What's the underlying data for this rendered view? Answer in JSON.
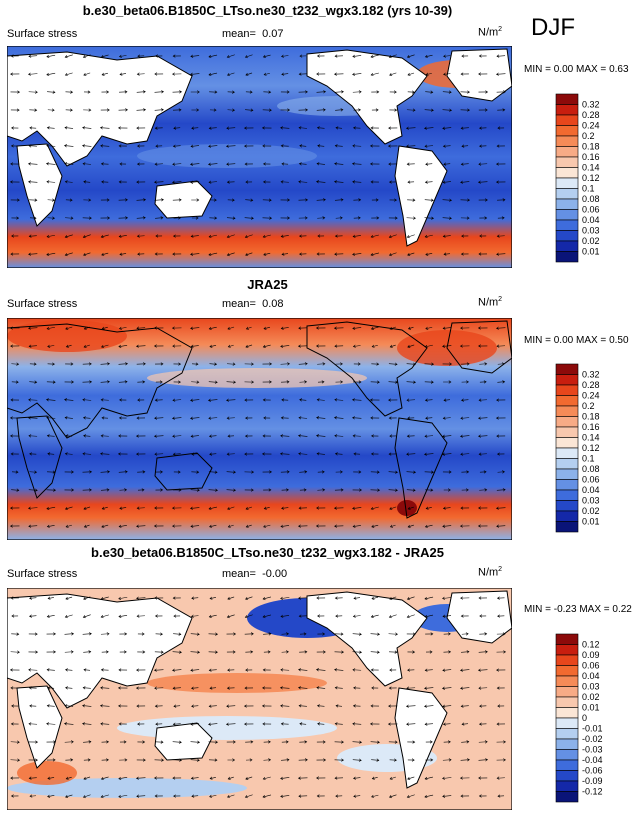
{
  "season": "DJF",
  "panels": [
    {
      "title": "b.e30_beta06.B1850C_LTso.ne30_t232_wgx3.182 (yrs 10-39)",
      "left_label": "Surface stress",
      "mean_label": "mean=",
      "mean_value": "0.07",
      "units": "N/m",
      "units_sup": "2",
      "min_label": "MIN =",
      "min_value": "0.00",
      "max_label": "MAX =",
      "max_value": "0.63"
    },
    {
      "title": "JRA25",
      "left_label": "Surface stress",
      "mean_label": "mean=",
      "mean_value": "0.08",
      "units": "N/m",
      "units_sup": "2",
      "min_label": "MIN =",
      "min_value": "0.00",
      "max_label": "MAX =",
      "max_value": "0.50"
    },
    {
      "title": "b.e30_beta06.B1850C_LTso.ne30_t232_wgx3.182 - JRA25",
      "left_label": "Surface stress",
      "mean_label": "mean=",
      "mean_value": "-0.00",
      "units": "N/m",
      "units_sup": "2",
      "min_label": "MIN =",
      "min_value": "-0.23",
      "max_label": "MAX =",
      "max_value": "0.22"
    }
  ],
  "colorbars": {
    "magnitude": {
      "labels": [
        "0.32",
        "0.28",
        "0.24",
        "0.2",
        "0.18",
        "0.16",
        "0.14",
        "0.12",
        "0.1",
        "0.08",
        "0.06",
        "0.04",
        "0.03",
        "0.02",
        "0.01"
      ],
      "colors": [
        "#8c0a0a",
        "#c81e0f",
        "#e8461c",
        "#f26a30",
        "#f58b58",
        "#f7ab86",
        "#f8c8ae",
        "#fbe6d6",
        "#dce9f7",
        "#b4cff0",
        "#8cb2ea",
        "#6490e4",
        "#3e6cdc",
        "#2448c8",
        "#1428a8",
        "#0a1478"
      ]
    },
    "difference": {
      "labels": [
        "0.12",
        "0.09",
        "0.06",
        "0.04",
        "0.03",
        "0.02",
        "0.01",
        "0",
        "-0.01",
        "-0.02",
        "-0.03",
        "-0.04",
        "-0.06",
        "-0.09",
        "-0.12"
      ],
      "colors": [
        "#8c0a0a",
        "#c81e0f",
        "#e8461c",
        "#f26a30",
        "#f58b58",
        "#f7ab86",
        "#f8c8ae",
        "#fbe6d6",
        "#dce9f7",
        "#b4cff0",
        "#8cb2ea",
        "#6490e4",
        "#3e6cdc",
        "#2448c8",
        "#1428a8",
        "#0a1478"
      ]
    }
  },
  "chart_data": [
    {
      "type": "heatmap",
      "title": "b.e30_beta06.B1850C_LTso.ne30_t232_wgx3.182 (yrs 10-39)",
      "variable": "Surface stress",
      "units": "N/m2",
      "season": "DJF",
      "mean": 0.07,
      "min": 0.0,
      "max": 0.63,
      "contour_levels": [
        0.01,
        0.02,
        0.03,
        0.04,
        0.06,
        0.08,
        0.1,
        0.12,
        0.14,
        0.16,
        0.18,
        0.2,
        0.24,
        0.28,
        0.32
      ],
      "overlay": "wind stress vectors",
      "map": "global, Pacific-centered"
    },
    {
      "type": "heatmap",
      "title": "JRA25",
      "variable": "Surface stress",
      "units": "N/m2",
      "season": "DJF",
      "mean": 0.08,
      "min": 0.0,
      "max": 0.5,
      "contour_levels": [
        0.01,
        0.02,
        0.03,
        0.04,
        0.06,
        0.08,
        0.1,
        0.12,
        0.14,
        0.16,
        0.18,
        0.2,
        0.24,
        0.28,
        0.32
      ],
      "overlay": "wind stress vectors",
      "map": "global, Pacific-centered"
    },
    {
      "type": "heatmap",
      "title": "b.e30_beta06.B1850C_LTso.ne30_t232_wgx3.182 - JRA25",
      "variable": "Surface stress",
      "units": "N/m2",
      "season": "DJF",
      "mean": -0.0,
      "min": -0.23,
      "max": 0.22,
      "contour_levels": [
        -0.12,
        -0.09,
        -0.06,
        -0.04,
        -0.03,
        -0.02,
        -0.01,
        0,
        0.01,
        0.02,
        0.03,
        0.04,
        0.06,
        0.09,
        0.12
      ],
      "overlay": "wind stress difference vectors",
      "map": "global, Pacific-centered"
    }
  ]
}
